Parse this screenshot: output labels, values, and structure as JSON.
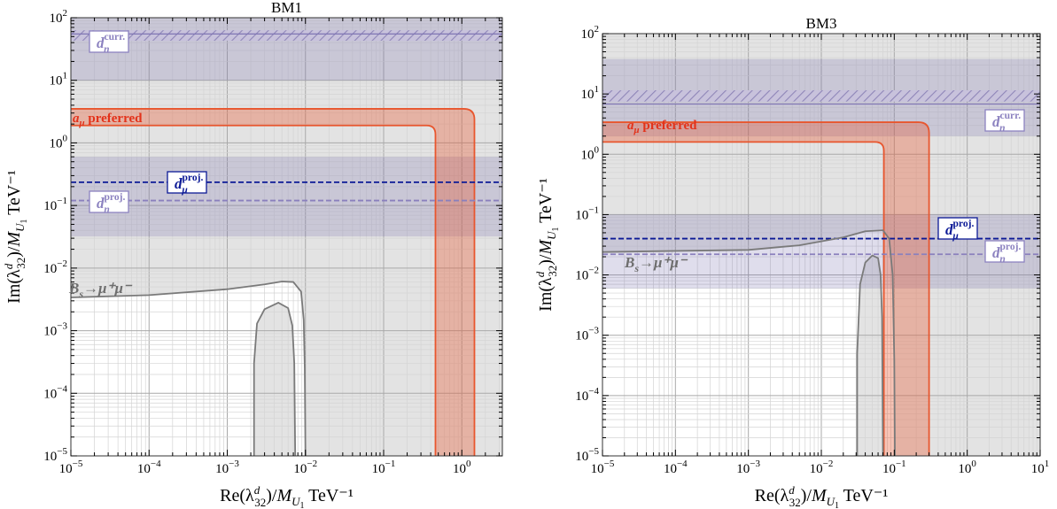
{
  "chart_data": [
    {
      "type": "line",
      "title": "BM1",
      "xlabel_main": "Re(λ",
      "xlabel_sub": "32",
      "xlabel_sup": "d",
      "xlabel_tail": ")/M",
      "xlabel_msub": "U",
      "xlabel_msub2": "1",
      "xlabel_unit": " TeV⁻¹",
      "ylabel_main": "Im(λ",
      "ylabel_sub": "32",
      "ylabel_sup": "d",
      "ylabel_tail": ")/M",
      "ylabel_msub": "U",
      "ylabel_msub2": "1",
      "ylabel_unit": " TeV⁻¹",
      "xscale": "log",
      "yscale": "log",
      "xlim": [
        1e-05,
        3.3
      ],
      "ylim": [
        1e-05,
        100
      ],
      "xticks": [
        {
          "v": 1e-05,
          "base": "10",
          "exp": "−5"
        },
        {
          "v": 0.0001,
          "base": "10",
          "exp": "−4"
        },
        {
          "v": 0.001,
          "base": "10",
          "exp": "−3"
        },
        {
          "v": 0.01,
          "base": "10",
          "exp": "−2"
        },
        {
          "v": 0.1,
          "base": "10",
          "exp": "−1"
        },
        {
          "v": 1,
          "base": "10",
          "exp": "0"
        }
      ],
      "yticks": [
        {
          "v": 1e-05,
          "base": "10",
          "exp": "−5"
        },
        {
          "v": 0.0001,
          "base": "10",
          "exp": "−4"
        },
        {
          "v": 0.001,
          "base": "10",
          "exp": "−3"
        },
        {
          "v": 0.01,
          "base": "10",
          "exp": "−2"
        },
        {
          "v": 0.1,
          "base": "10",
          "exp": "−1"
        },
        {
          "v": 1,
          "base": "10",
          "exp": "0"
        },
        {
          "v": 10,
          "base": "10",
          "exp": "1"
        },
        {
          "v": 100,
          "base": "10",
          "exp": "2"
        }
      ],
      "grid": true,
      "amu_band": {
        "y_inner": 1.9,
        "y_outer": 3.5,
        "x_inner": 0.46,
        "x_outer": 1.45,
        "label": "a",
        "label_sub": "μ",
        "label_tail": " preferred",
        "color": "#e8562e"
      },
      "dn_curr": {
        "y_lo": 10,
        "y_hi": 100,
        "hatch_lo": 43,
        "hatch_hi": 63,
        "line": 55,
        "label": "d",
        "label_sub": "n",
        "label_sup": "curr."
      },
      "dn_proj": {
        "y_lo": 0.032,
        "y_hi": 0.6,
        "line": 0.12,
        "label": "d",
        "label_sub": "n",
        "label_sup": "proj."
      },
      "dmu_proj": {
        "line": 0.235,
        "label": "d",
        "label_sub": "μ",
        "label_sup": "proj.",
        "color": "#0c1a96"
      },
      "bsmumu": {
        "label": "B",
        "label_sub": "s",
        "label_tail": "→μ⁺μ⁻",
        "outer": [
          [
            1e-05,
            0.0034
          ],
          [
            0.0001,
            0.0037
          ],
          [
            0.001,
            0.0046
          ],
          [
            0.003,
            0.0055
          ],
          [
            0.005,
            0.0061
          ],
          [
            0.007,
            0.006
          ],
          [
            0.0088,
            0.0042
          ],
          [
            0.0095,
            0.0015
          ],
          [
            0.0098,
            0.00025
          ],
          [
            0.01,
            1e-05
          ]
        ],
        "inner": [
          [
            0.0022,
            1e-05
          ],
          [
            0.0022,
            0.0003
          ],
          [
            0.0024,
            0.0013
          ],
          [
            0.003,
            0.0022
          ],
          [
            0.0045,
            0.0028
          ],
          [
            0.006,
            0.0023
          ],
          [
            0.0068,
            0.0012
          ],
          [
            0.0072,
            0.0003
          ],
          [
            0.0074,
            1e-05
          ]
        ]
      }
    },
    {
      "type": "line",
      "title": "BM3",
      "xlabel_main": "Re(λ",
      "xlabel_sub": "32",
      "xlabel_sup": "d",
      "xlabel_tail": ")/M",
      "xlabel_msub": "U",
      "xlabel_msub2": "1",
      "xlabel_unit": " TeV⁻¹",
      "ylabel_main": "Im(λ",
      "ylabel_sub": "32",
      "ylabel_sup": "d",
      "ylabel_tail": ")/M",
      "ylabel_msub": "U",
      "ylabel_msub2": "1",
      "ylabel_unit": " TeV⁻¹",
      "xscale": "log",
      "yscale": "log",
      "xlim": [
        1e-05,
        10
      ],
      "ylim": [
        1e-05,
        100
      ],
      "xticks": [
        {
          "v": 1e-05,
          "base": "10",
          "exp": "−5"
        },
        {
          "v": 0.0001,
          "base": "10",
          "exp": "−4"
        },
        {
          "v": 0.001,
          "base": "10",
          "exp": "−3"
        },
        {
          "v": 0.01,
          "base": "10",
          "exp": "−2"
        },
        {
          "v": 0.1,
          "base": "10",
          "exp": "−1"
        },
        {
          "v": 1,
          "base": "10",
          "exp": "0"
        },
        {
          "v": 10,
          "base": "10",
          "exp": "1"
        }
      ],
      "yticks": [
        {
          "v": 1e-05,
          "base": "10",
          "exp": "−5"
        },
        {
          "v": 0.0001,
          "base": "10",
          "exp": "−4"
        },
        {
          "v": 0.001,
          "base": "10",
          "exp": "−3"
        },
        {
          "v": 0.01,
          "base": "10",
          "exp": "−2"
        },
        {
          "v": 0.1,
          "base": "10",
          "exp": "−1"
        },
        {
          "v": 1,
          "base": "10",
          "exp": "0"
        },
        {
          "v": 10,
          "base": "10",
          "exp": "1"
        },
        {
          "v": 100,
          "base": "10",
          "exp": "2"
        }
      ],
      "grid": true,
      "amu_band": {
        "y_inner": 1.6,
        "y_outer": 3.4,
        "x_inner": 0.072,
        "x_outer": 0.3,
        "label": "a",
        "label_sub": "μ",
        "label_tail": " preferred",
        "color": "#e8562e"
      },
      "dn_curr": {
        "y_lo": 2,
        "y_hi": 38,
        "hatch_lo": 7.5,
        "hatch_hi": 11.5,
        "line": 6.8,
        "label": "d",
        "label_sub": "n",
        "label_sup": "curr."
      },
      "dn_proj": {
        "y_lo": 0.006,
        "y_hi": 0.1,
        "line": 0.022,
        "label": "d",
        "label_sub": "n",
        "label_sup": "proj."
      },
      "dmu_proj": {
        "line": 0.04,
        "label": "d",
        "label_sub": "μ",
        "label_sup": "proj.",
        "color": "#0c1a96"
      },
      "bsmumu": {
        "label": "B",
        "label_sub": "s",
        "label_tail": "→μ⁺μ⁻",
        "outer": [
          [
            1e-05,
            0.024
          ],
          [
            0.0001,
            0.025
          ],
          [
            0.001,
            0.026
          ],
          [
            0.005,
            0.031
          ],
          [
            0.02,
            0.042
          ],
          [
            0.04,
            0.053
          ],
          [
            0.07,
            0.055
          ],
          [
            0.085,
            0.04
          ],
          [
            0.095,
            0.01
          ],
          [
            0.1,
            0.0004
          ],
          [
            0.102,
            1e-05
          ]
        ],
        "inner": [
          [
            0.031,
            1e-05
          ],
          [
            0.031,
            0.0005
          ],
          [
            0.034,
            0.007
          ],
          [
            0.04,
            0.016
          ],
          [
            0.05,
            0.021
          ],
          [
            0.06,
            0.019
          ],
          [
            0.065,
            0.01
          ],
          [
            0.068,
            0.002
          ],
          [
            0.07,
            1e-05
          ]
        ]
      }
    }
  ]
}
